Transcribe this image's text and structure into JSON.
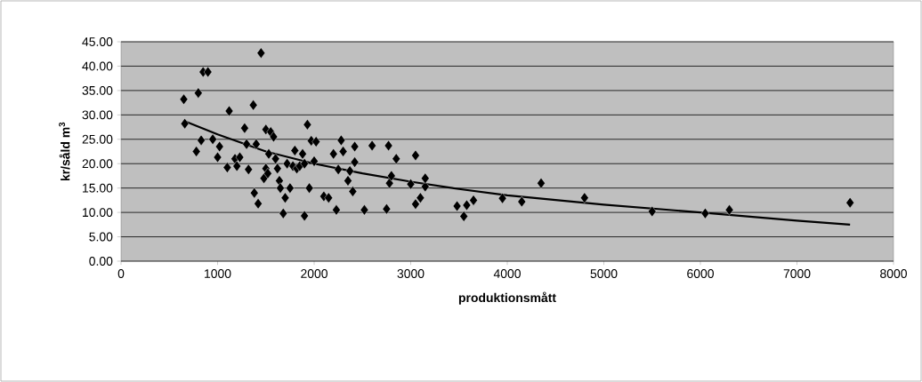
{
  "chart_data": {
    "type": "scatter",
    "xlabel": "produktionsmått",
    "ylabel": "kr/såld m$^{3}$",
    "xlim": [
      0,
      8000
    ],
    "ylim": [
      0,
      45
    ],
    "xticks": [
      0,
      1000,
      2000,
      3000,
      4000,
      5000,
      6000,
      7000,
      8000
    ],
    "yticks": [
      {
        "value": 0,
        "label": "0.00"
      },
      {
        "value": 5,
        "label": "5.00"
      },
      {
        "value": 10,
        "label": "10.00"
      },
      {
        "value": 15,
        "label": "15.00"
      },
      {
        "value": 20,
        "label": "20.00"
      },
      {
        "value": 25,
        "label": "25.00"
      },
      {
        "value": 30,
        "label": "30.00"
      },
      {
        "value": 35,
        "label": "35.00"
      },
      {
        "value": 40,
        "label": "40.00"
      },
      {
        "value": 45,
        "label": "45.00"
      }
    ],
    "grid": "y",
    "series": [
      {
        "color": "#000000",
        "marker": "diamond",
        "x": [
          650,
          660,
          780,
          800,
          830,
          850,
          900,
          950,
          1000,
          1020,
          1100,
          1120,
          1180,
          1200,
          1230,
          1280,
          1300,
          1320,
          1370,
          1380,
          1400,
          1420,
          1450,
          1480,
          1500,
          1500,
          1520,
          1530,
          1550,
          1580,
          1600,
          1620,
          1640,
          1650,
          1680,
          1700,
          1720,
          1750,
          1780,
          1800,
          1820,
          1850,
          1880,
          1900,
          1900,
          1930,
          1950,
          1970,
          2000,
          2020,
          2100,
          2150,
          2200,
          2230,
          2250,
          2280,
          2300,
          2350,
          2370,
          2400,
          2420,
          2420,
          2520,
          2600,
          2750,
          2770,
          2780,
          2800,
          2850,
          3000,
          3050,
          3050,
          3100,
          3150,
          3150,
          3480,
          3550,
          3580,
          3650,
          3950,
          4150,
          4350,
          4800,
          5500,
          6050,
          6300,
          7550
        ],
        "values": [
          33.2,
          28.2,
          22.5,
          34.5,
          24.8,
          38.8,
          38.8,
          25,
          21.3,
          23.5,
          19.2,
          30.8,
          21,
          19.5,
          21.3,
          27.3,
          24,
          18.8,
          32,
          14,
          24,
          11.8,
          42.7,
          17,
          27,
          19,
          18,
          22,
          26.5,
          25.5,
          21,
          19,
          16.5,
          15,
          9.8,
          13,
          20,
          15,
          19.5,
          22.7,
          19,
          19.5,
          22,
          9.3,
          20,
          28,
          15,
          24.7,
          20.5,
          24.5,
          13.3,
          13,
          22,
          10.5,
          18.8,
          24.8,
          22.5,
          16.5,
          18.5,
          14.3,
          20.3,
          23.5,
          10.5,
          23.7,
          10.7,
          23.7,
          16,
          17.5,
          21,
          15.8,
          21.7,
          11.7,
          13,
          15.3,
          17,
          11.3,
          9.2,
          11.5,
          12.5,
          12.9,
          12.2,
          16,
          13,
          10.2,
          9.8,
          10.5,
          12
        ]
      },
      {
        "type": "line",
        "color": "#000000",
        "marker": "none",
        "line_style": "solid",
        "x": [
          650,
          1000,
          1500,
          2000,
          2500,
          3000,
          3500,
          4000,
          5000,
          6000,
          7000,
          7550
        ],
        "values": [
          28.8,
          26,
          22.5,
          20,
          18,
          16.3,
          14.8,
          13.5,
          11.6,
          10,
          8.3,
          7.5
        ]
      }
    ]
  }
}
